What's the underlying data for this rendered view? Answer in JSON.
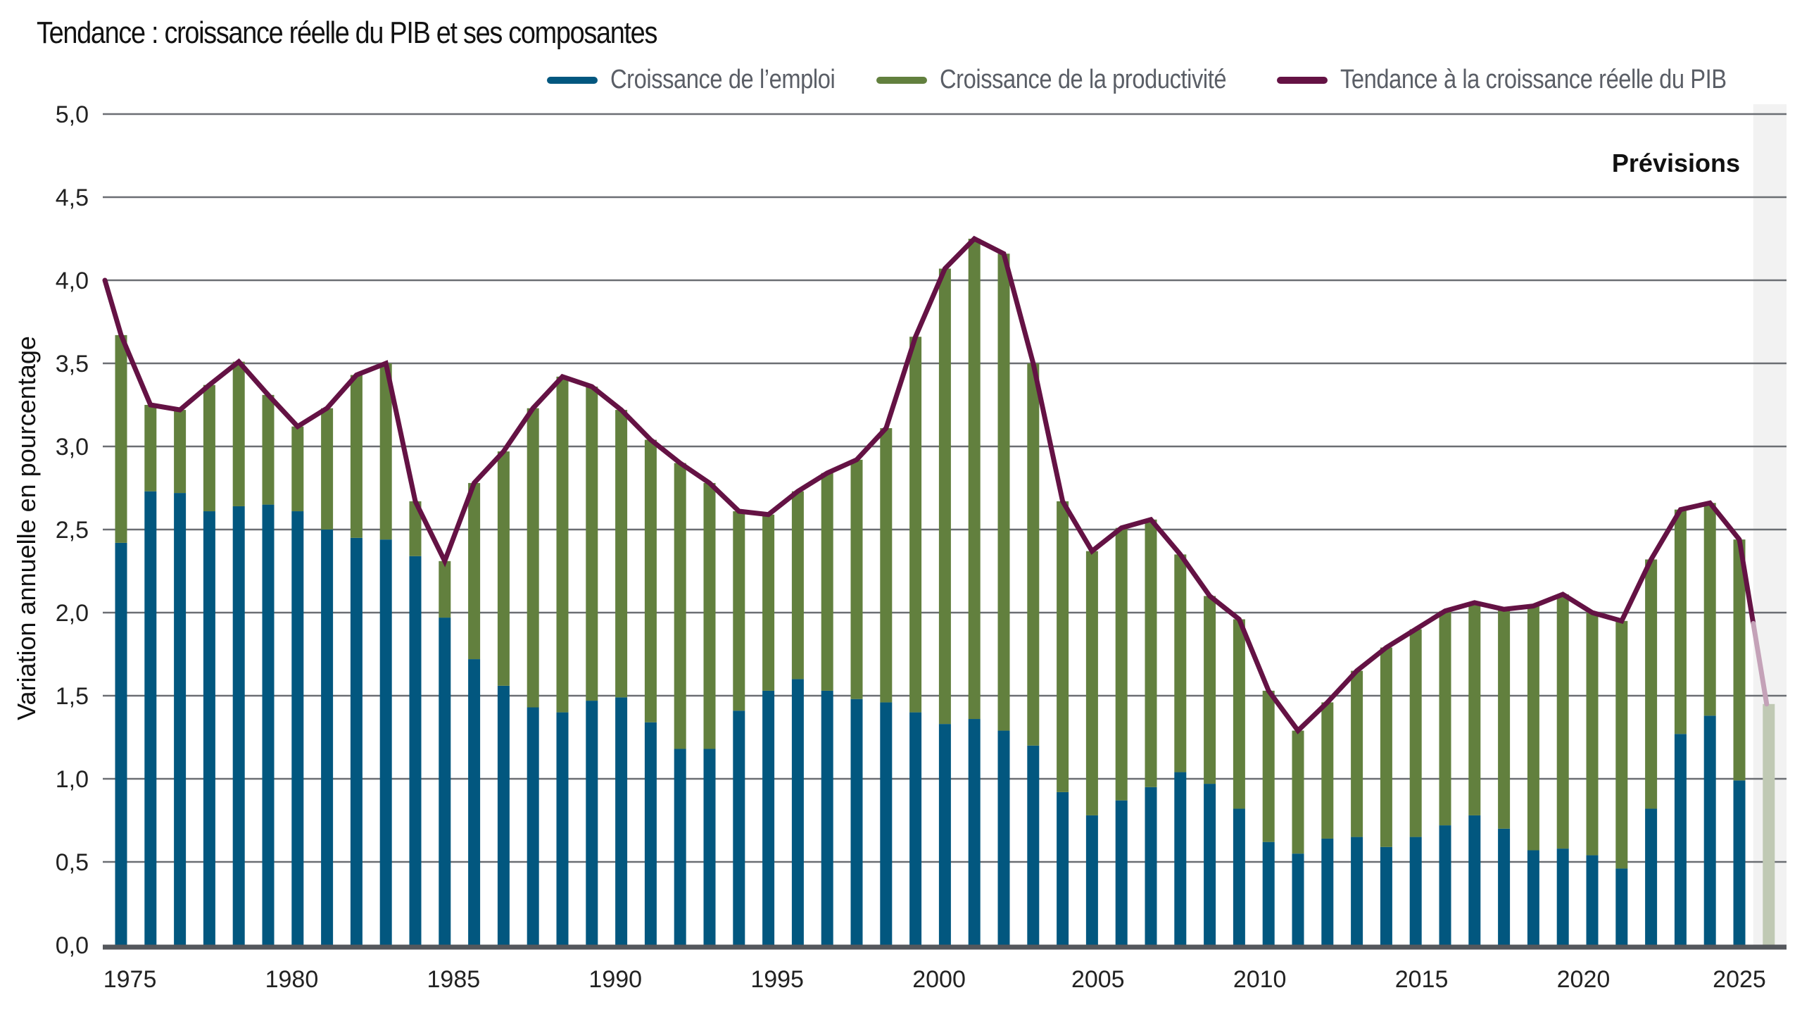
{
  "title": "Tendance : croissance réelle du PIB et ses composantes",
  "legend": [
    {
      "label": "Croissance de l’emploi",
      "color": "#02577f"
    },
    {
      "label": "Croissance de la productivité",
      "color": "#62803e"
    },
    {
      "label": "Tendance à la croissance réelle du PIB",
      "color": "#641244"
    }
  ],
  "forecast_label": "Prévisions",
  "colors": {
    "employment": "#02577f",
    "productivity": "#62803e",
    "trend": "#641244",
    "forecast_bar": "#c0c9b4",
    "forecast_line": "#c4a2b8",
    "forecast_band": "#f2f2f2",
    "grid": "#6b6e73",
    "axis": "#54575c"
  },
  "chart_data": {
    "type": "bar",
    "stacked": true,
    "title": "Tendance : croissance réelle du PIB et ses composantes",
    "xlabel": "",
    "ylabel": "Variation annuelle en pourcentage",
    "ylim": [
      0,
      5
    ],
    "yticks": [
      "0,0",
      "0,5",
      "1,0",
      "1,5",
      "2,0",
      "2,5",
      "3,0",
      "3,5",
      "4,0",
      "4,5",
      "5,0"
    ],
    "ytick_values": [
      0,
      0.5,
      1,
      1.5,
      2,
      2.5,
      3,
      3.5,
      4,
      4.5,
      5
    ],
    "xticks": [
      {
        "label": "1975",
        "pos": 0.3
      },
      {
        "label": "1980",
        "pos": 5.8
      },
      {
        "label": "1985",
        "pos": 11.3
      },
      {
        "label": "1990",
        "pos": 16.8
      },
      {
        "label": "1995",
        "pos": 22.3
      },
      {
        "label": "2000",
        "pos": 27.8
      },
      {
        "label": "2005",
        "pos": 33.2
      },
      {
        "label": "2010",
        "pos": 38.7
      },
      {
        "label": "2015",
        "pos": 44.2
      },
      {
        "label": "2020",
        "pos": 49.7
      },
      {
        "label": "2025",
        "pos": 55.0
      }
    ],
    "grid": true,
    "legend_position": "top-right",
    "series": [
      {
        "name": "Croissance de l’emploi",
        "values": [
          2.42,
          2.73,
          2.72,
          2.61,
          2.64,
          2.65,
          2.61,
          2.5,
          2.45,
          2.44,
          2.34,
          1.97,
          1.72,
          1.56,
          1.43,
          1.4,
          1.47,
          1.49,
          1.34,
          1.18,
          1.18,
          1.41,
          1.53,
          1.6,
          1.53,
          1.48,
          1.46,
          1.4,
          1.33,
          1.36,
          1.29,
          1.2,
          0.92,
          0.78,
          0.87,
          0.95,
          1.04,
          0.97,
          0.82,
          0.62,
          0.55,
          0.64,
          0.65,
          0.59,
          0.65,
          0.72,
          0.78,
          0.7,
          0.57,
          0.58,
          0.54,
          0.46,
          0.82,
          1.27,
          1.38,
          0.99
        ]
      },
      {
        "name": "Croissance de la productivité",
        "values": [
          1.25,
          0.52,
          0.5,
          0.76,
          0.87,
          0.66,
          0.51,
          0.73,
          0.98,
          1.06,
          0.33,
          0.34,
          1.06,
          1.41,
          1.8,
          2.02,
          1.89,
          1.73,
          1.7,
          1.72,
          1.6,
          1.2,
          1.06,
          1.13,
          1.31,
          1.44,
          1.65,
          2.26,
          2.74,
          2.89,
          2.87,
          2.3,
          1.75,
          1.59,
          1.64,
          1.61,
          1.31,
          1.13,
          1.14,
          0.91,
          0.74,
          0.82,
          1.0,
          1.2,
          1.25,
          1.29,
          1.28,
          1.32,
          1.47,
          1.53,
          1.46,
          1.49,
          1.5,
          1.35,
          1.28,
          1.45
        ]
      },
      {
        "name": "Tendance à la croissance réelle du PIB",
        "type": "line",
        "start_value": 4.0,
        "values": [
          3.67,
          3.25,
          3.22,
          3.37,
          3.51,
          3.31,
          3.12,
          3.23,
          3.43,
          3.5,
          2.67,
          2.31,
          2.78,
          2.97,
          3.23,
          3.42,
          3.36,
          3.22,
          3.04,
          2.9,
          2.78,
          2.61,
          2.59,
          2.73,
          2.84,
          2.92,
          3.11,
          3.66,
          4.07,
          4.25,
          4.16,
          3.5,
          2.67,
          2.37,
          2.51,
          2.56,
          2.35,
          2.1,
          1.96,
          1.53,
          1.29,
          1.46,
          1.65,
          1.79,
          1.9,
          2.01,
          2.06,
          2.02,
          2.04,
          2.11,
          2.0,
          1.95,
          2.32,
          2.62,
          2.66,
          2.44
        ]
      }
    ],
    "forecast": {
      "label": "Prévisions",
      "total": 1.45,
      "line_end": 1.45
    }
  }
}
